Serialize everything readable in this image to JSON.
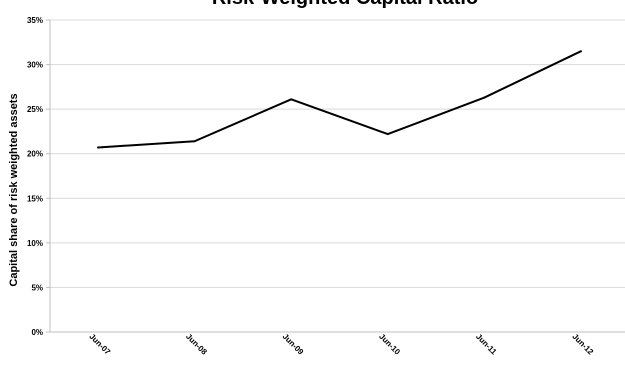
{
  "chart_data": {
    "type": "line",
    "title": "Risk-Weighted Capital Ratio",
    "xlabel": "",
    "ylabel": "Capital share of risk weighted assets",
    "categories": [
      "Jun-07",
      "Jun-08",
      "Jun-09",
      "Jun-10",
      "Jun-11",
      "Jun-12"
    ],
    "series": [
      {
        "values": [
          20.7,
          21.4,
          26.1,
          22.2,
          26.3,
          31.5
        ]
      }
    ],
    "ylim": [
      0,
      35
    ],
    "yticks": [
      0,
      5,
      10,
      15,
      20,
      25,
      30,
      35
    ],
    "ytick_labels": [
      "0%",
      "5%",
      "10%",
      "15%",
      "20%",
      "25%",
      "30%",
      "35%"
    ],
    "grid": true,
    "legend": "none",
    "colors": {
      "line": "#000000",
      "grid": "#d9d9d9",
      "axis": "#bfbfbf"
    }
  }
}
